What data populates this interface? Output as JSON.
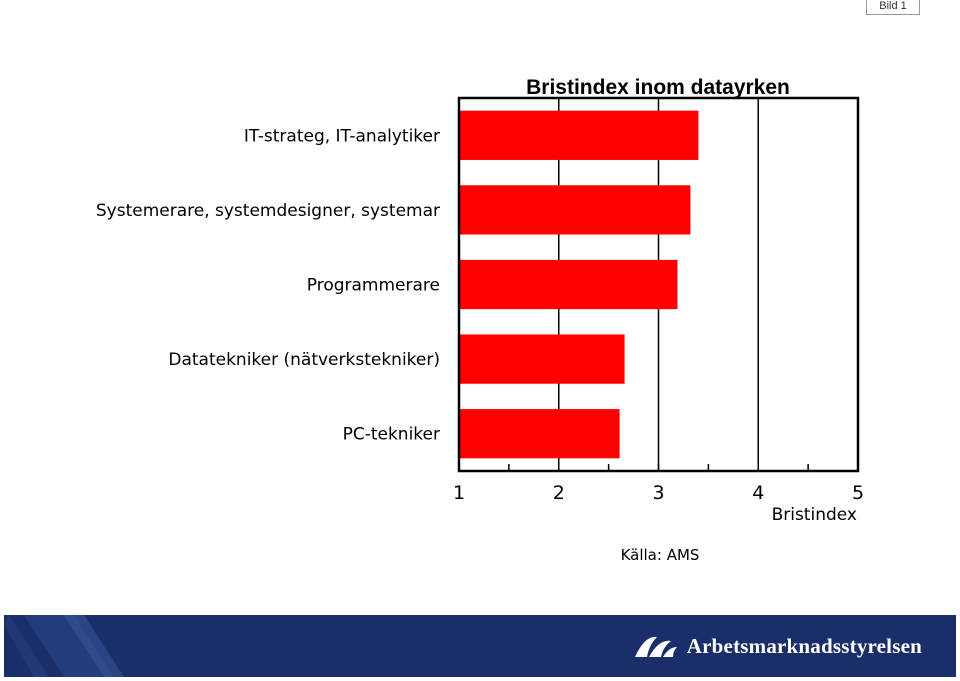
{
  "slide_tab": "Bild 1",
  "source": "Källa: AMS",
  "brand": {
    "name": "Arbetsmarknadsstyrelsen"
  },
  "colors": {
    "bar": "#ff0000",
    "footer": "#1a2f6a"
  },
  "chart_data": {
    "type": "bar",
    "orientation": "horizontal",
    "title": "Bristindex inom datayrken",
    "categories": [
      "IT-strateg, IT-analytiker",
      "Systemerare, systemdesigner, systemar",
      "Programmerare",
      "Datatekniker (nätverkstekniker)",
      "PC-tekniker"
    ],
    "values": [
      3.4,
      3.32,
      3.19,
      2.66,
      2.61
    ],
    "xlabel": "Bristindex",
    "ylabel": "",
    "xlim": [
      1,
      5
    ],
    "xticks": [
      "1",
      "2",
      "3",
      "4",
      "5"
    ],
    "grid": true
  }
}
